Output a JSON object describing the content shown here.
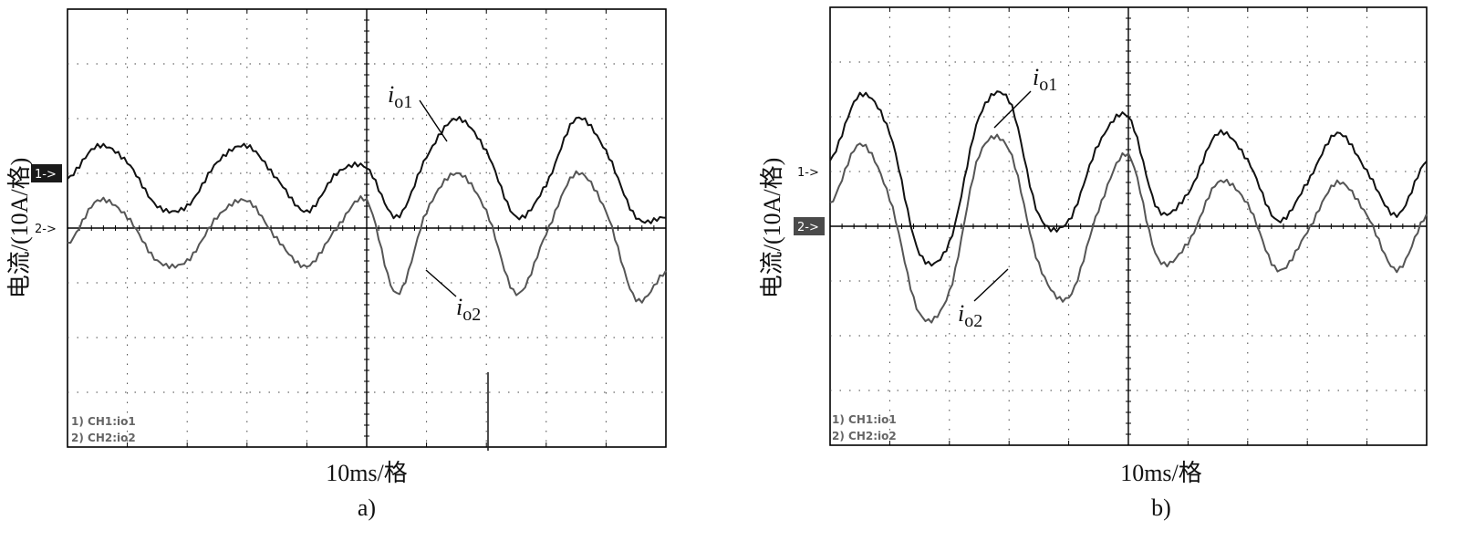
{
  "chart_data": [
    {
      "type": "line",
      "subplot_label": "a)",
      "ylabel": "电流/(10A/格)",
      "xlabel": "10ms/格",
      "divisions": {
        "x": 10,
        "y": 8
      },
      "xlim": [
        0,
        10
      ],
      "ylim": [
        -4,
        4
      ],
      "channel_markers": [
        {
          "label": "1->",
          "level": 1.0,
          "highlighted": true
        },
        {
          "label": "2->",
          "level": 0.0,
          "highlighted": false
        }
      ],
      "legend": [
        "1) CH1:io1",
        "2) CH2:io2"
      ],
      "annotations": [
        {
          "text": "i",
          "sub": "o1"
        },
        {
          "text": "i",
          "sub": "o2"
        }
      ],
      "series": [
        {
          "name": "io1",
          "x": [
            0,
            0.5,
            1.0,
            1.5,
            2.0,
            2.5,
            3.0,
            3.5,
            4.0,
            4.5,
            5.0,
            5.5,
            6.0,
            6.5,
            7.0,
            7.5,
            8.0,
            8.5,
            9.0,
            9.5,
            10.0
          ],
          "y": [
            0.9,
            1.5,
            1.2,
            0.4,
            0.4,
            1.2,
            1.5,
            0.9,
            0.3,
            1.0,
            1.1,
            0.2,
            1.3,
            2.0,
            1.4,
            0.2,
            0.8,
            2.0,
            1.4,
            0.2,
            0.2
          ]
        },
        {
          "name": "io2",
          "x": [
            0,
            0.5,
            1.0,
            1.5,
            2.0,
            2.5,
            3.0,
            3.5,
            4.0,
            4.5,
            5.0,
            5.5,
            6.0,
            6.5,
            7.0,
            7.5,
            8.0,
            8.5,
            9.0,
            9.5,
            10.0
          ],
          "y": [
            -0.3,
            0.5,
            0.2,
            -0.6,
            -0.6,
            0.2,
            0.5,
            -0.2,
            -0.7,
            0.0,
            0.5,
            -1.2,
            0.3,
            1.0,
            0.3,
            -1.2,
            -0.1,
            1.0,
            0.3,
            -1.3,
            -0.8
          ]
        }
      ]
    },
    {
      "type": "line",
      "subplot_label": "b)",
      "ylabel": "电流/(10A/格)",
      "xlabel": "10ms/格",
      "divisions": {
        "x": 10,
        "y": 8
      },
      "xlim": [
        0,
        10
      ],
      "ylim": [
        -4,
        4
      ],
      "channel_markers": [
        {
          "label": "1->",
          "level": 1.0,
          "highlighted": false
        },
        {
          "label": "2->",
          "level": 0.0,
          "highlighted": true
        }
      ],
      "legend": [
        "1) CH1:io1",
        "2) CH2:io2"
      ],
      "annotations": [
        {
          "text": "i",
          "sub": "o1"
        },
        {
          "text": "i",
          "sub": "o2"
        }
      ],
      "series": [
        {
          "name": "io1",
          "x": [
            0,
            0.5,
            1.0,
            1.5,
            2.0,
            2.5,
            3.0,
            3.5,
            4.0,
            4.5,
            5.0,
            5.5,
            6.0,
            6.5,
            7.0,
            7.5,
            8.0,
            8.5,
            9.0,
            9.5,
            10.0
          ],
          "y": [
            1.2,
            2.4,
            1.7,
            -0.5,
            -0.3,
            2.0,
            2.3,
            0.2,
            0.1,
            1.5,
            2.0,
            0.3,
            0.6,
            1.7,
            1.2,
            0.1,
            0.8,
            1.7,
            1.0,
            0.2,
            1.2
          ]
        },
        {
          "name": "io2",
          "x": [
            0,
            0.5,
            1.0,
            1.5,
            2.0,
            2.5,
            3.0,
            3.5,
            4.0,
            4.5,
            5.0,
            5.5,
            6.0,
            6.5,
            7.0,
            7.5,
            8.0,
            8.5,
            9.0,
            9.5,
            10.0
          ],
          "y": [
            0.4,
            1.5,
            0.5,
            -1.6,
            -1.2,
            1.3,
            1.4,
            -0.7,
            -1.3,
            0.3,
            1.3,
            -0.6,
            -0.3,
            0.8,
            0.4,
            -0.8,
            -0.1,
            0.8,
            0.2,
            -0.8,
            0.2
          ]
        }
      ]
    }
  ]
}
